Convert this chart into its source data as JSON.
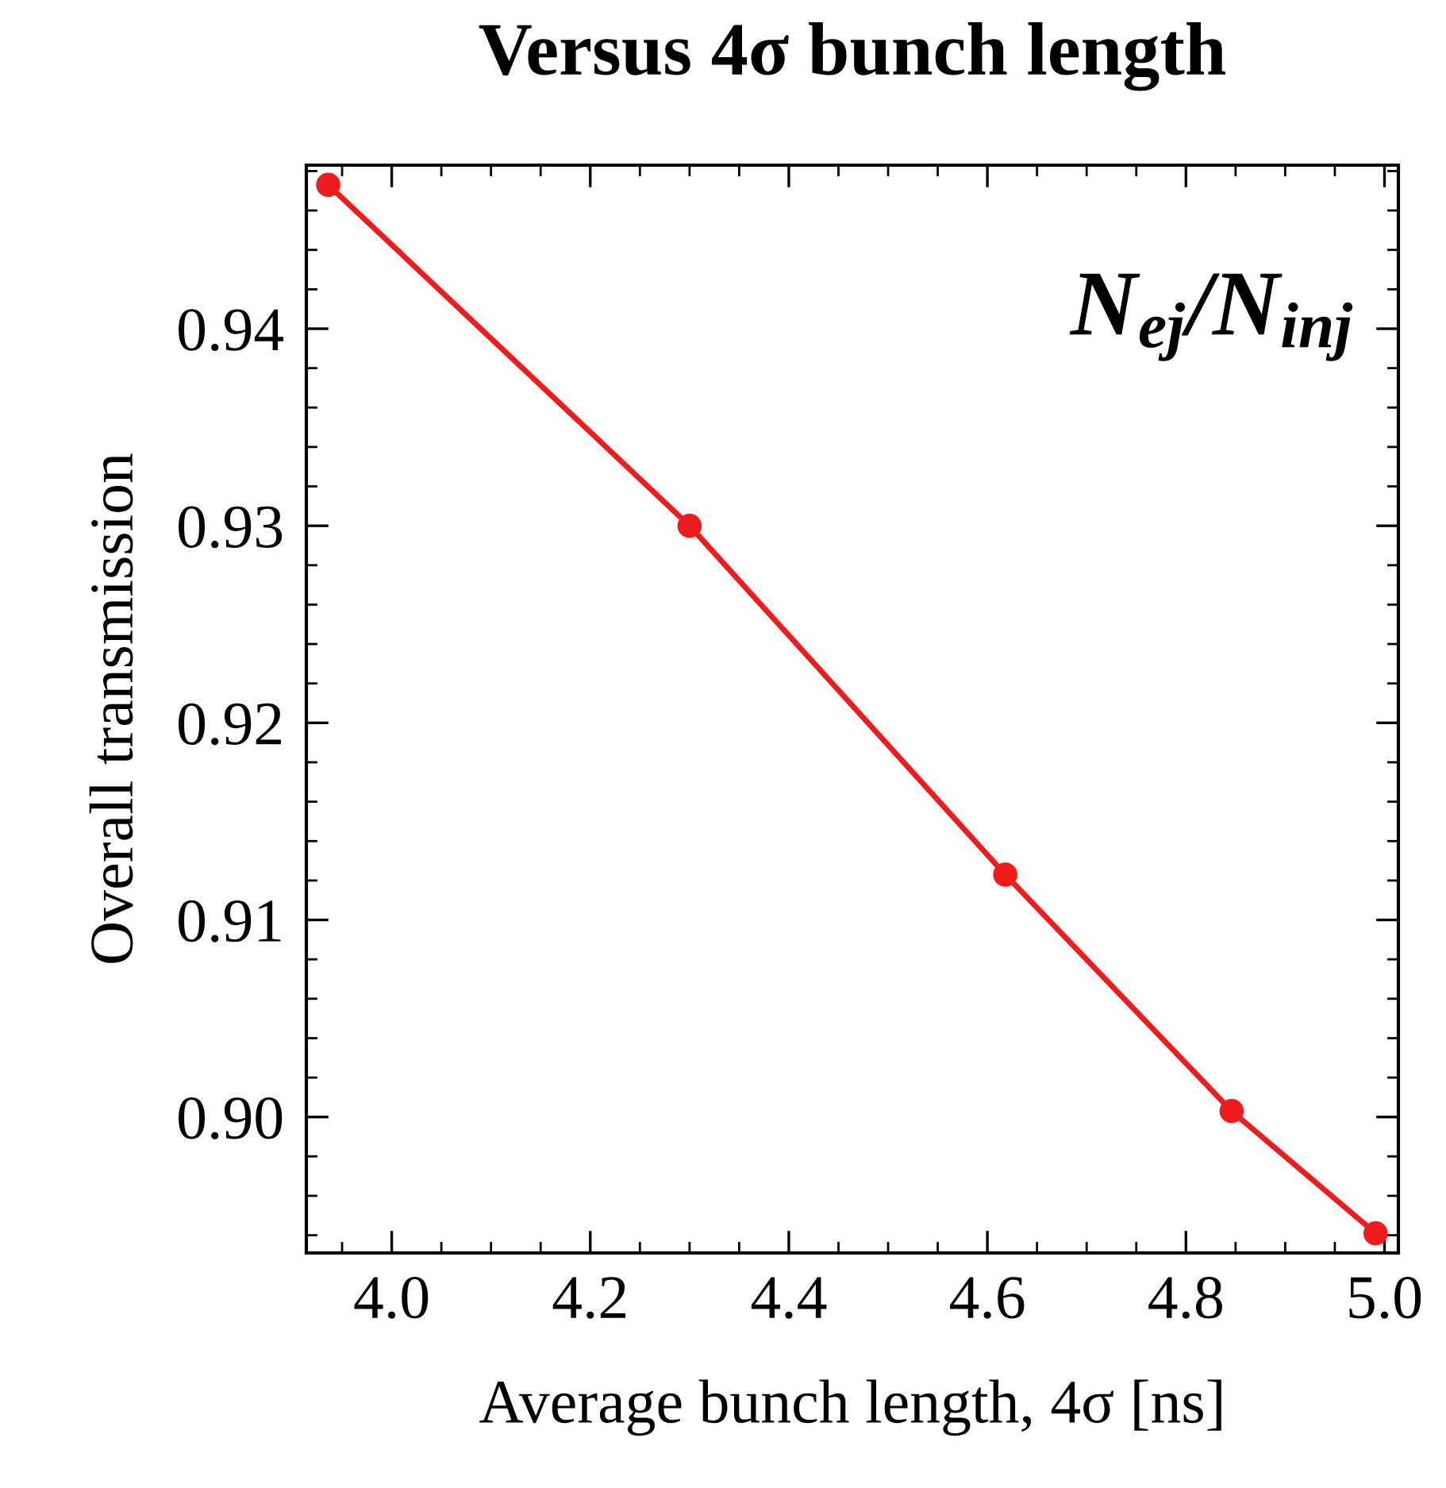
{
  "chart_data": {
    "type": "line",
    "title": "Versus 4σ bunch length",
    "xlabel": "Average bunch length, 4σ [ns]",
    "ylabel": "Overall transmission",
    "x": [
      3.936,
      4.3,
      4.618,
      4.846,
      4.991
    ],
    "series": [
      {
        "color": "#ee1c1c",
        "values": [
          0.9473,
          0.93,
          0.9123,
          0.9003,
          0.8941
        ]
      }
    ],
    "annotations": [
      "N$_{ej}$/N$_{inj}$"
    ],
    "xlim": [
      3.914,
      5.014
    ],
    "ylim": [
      0.8931,
      0.9483
    ],
    "xticks": [
      {
        "value": 4,
        "label": "4.0"
      },
      4.2,
      4.4,
      4.6,
      4.8,
      {
        "value": 5,
        "label": "5.0"
      }
    ],
    "yticks": [
      {
        "value": 0.9,
        "label": "0.90"
      },
      0.91,
      0.92,
      0.93,
      0.94
    ],
    "marker": "circle",
    "line_style": "solid",
    "grid": false,
    "legend": false
  }
}
